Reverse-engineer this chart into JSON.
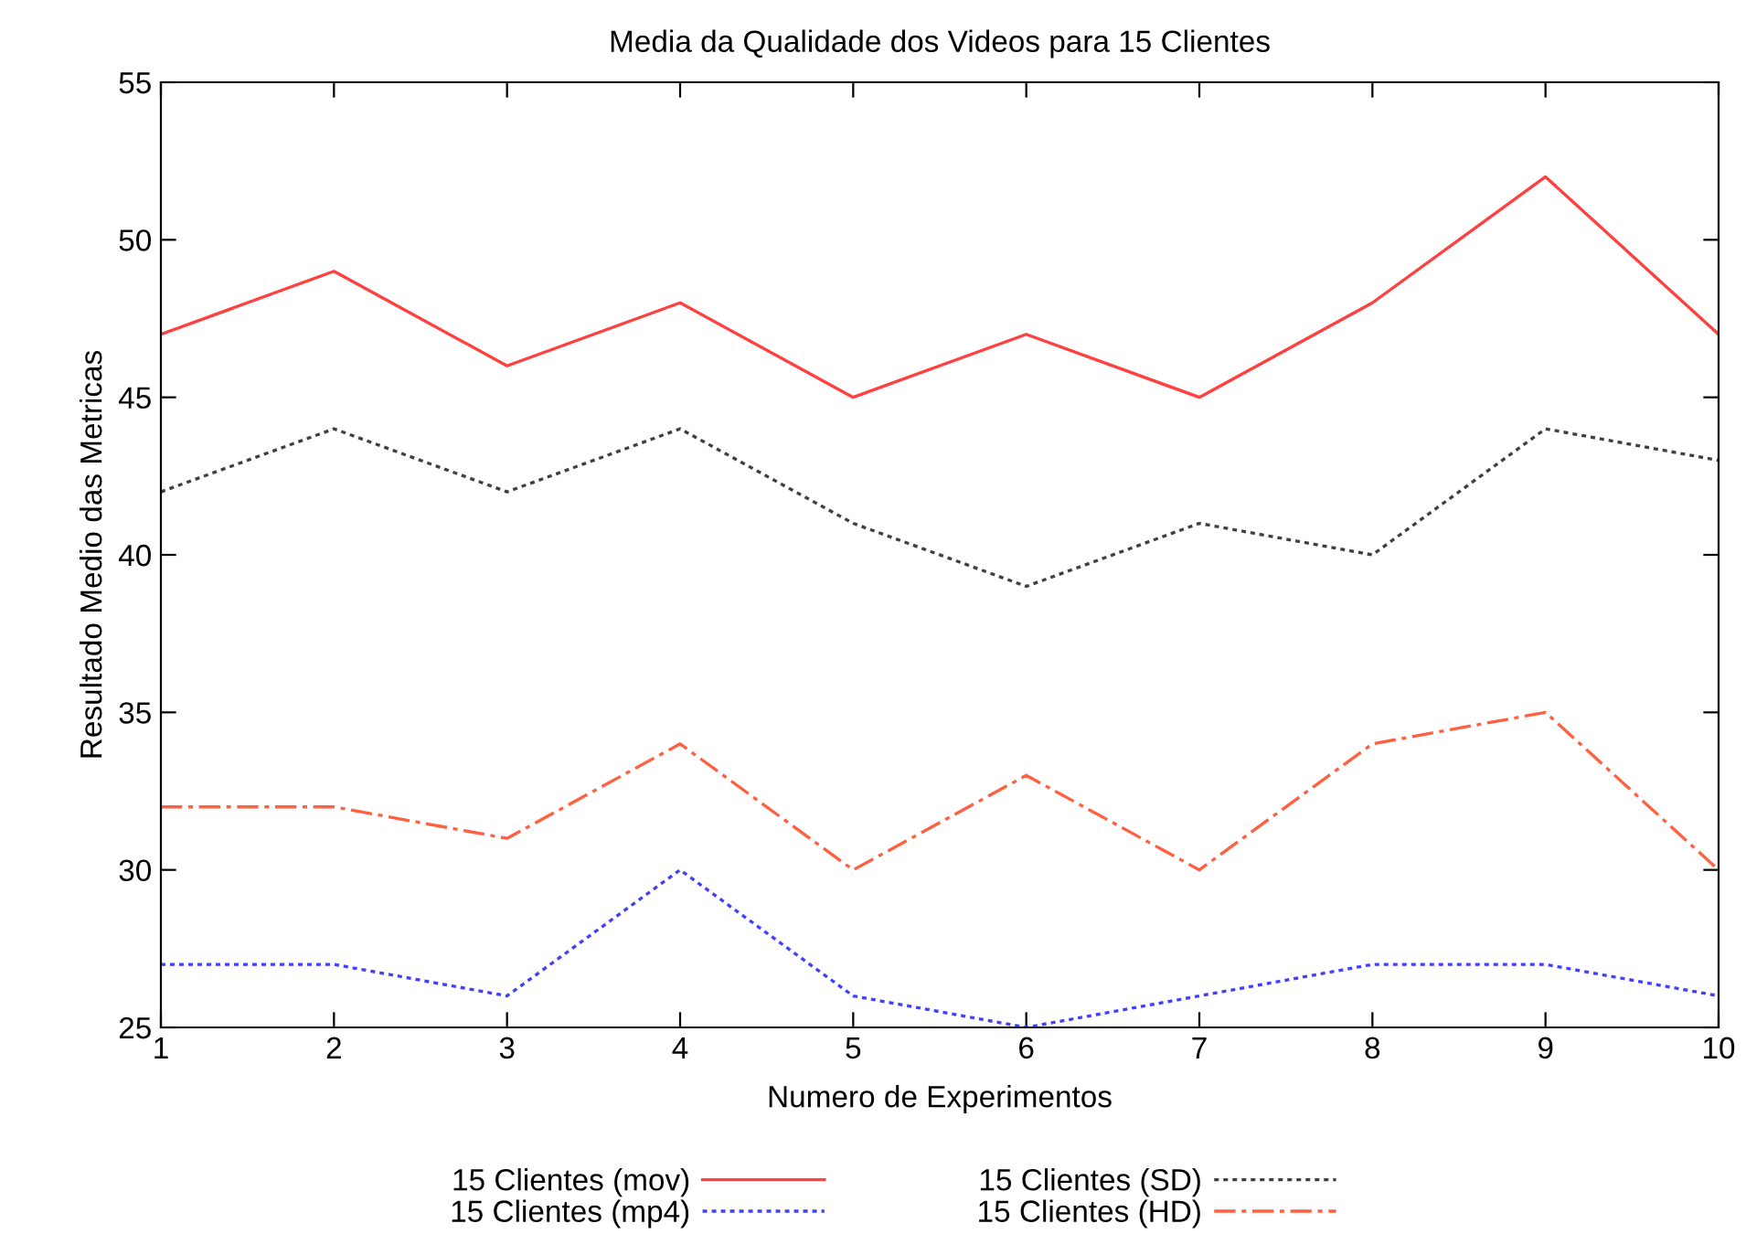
{
  "chart_data": {
    "type": "line",
    "title": "Media da Qualidade dos Videos para 15 Clientes",
    "xlabel": "Numero de Experimentos",
    "ylabel": "Resultado Medio das Metricas",
    "x": [
      1,
      2,
      3,
      4,
      5,
      6,
      7,
      8,
      9,
      10
    ],
    "series": [
      {
        "name": "15 Clientes (mov)",
        "color": "#ff4040",
        "line_style": "solid",
        "values": [
          47,
          49,
          46,
          48,
          45,
          47,
          45,
          48,
          52,
          47
        ]
      },
      {
        "name": "15 Clientes (mp4)",
        "color": "#4040ff",
        "line_style": "dotted",
        "values": [
          27,
          27,
          26,
          30,
          26,
          25,
          26,
          27,
          27,
          26
        ]
      },
      {
        "name": "15 Clientes (SD)",
        "color": "#404040",
        "line_style": "dotted",
        "values": [
          42,
          44,
          42,
          44,
          41,
          39,
          41,
          40,
          44,
          43
        ]
      },
      {
        "name": "15 Clientes (HD)",
        "color": "#ff6040",
        "line_style": "dashed",
        "values": [
          32,
          32,
          31,
          34,
          30,
          33,
          30,
          34,
          35,
          30
        ]
      }
    ],
    "xlim": [
      1,
      10
    ],
    "xticks": [
      1,
      2,
      3,
      4,
      5,
      6,
      7,
      8,
      9,
      10
    ],
    "ylim": [
      25,
      55
    ],
    "yticks": [
      25,
      30,
      35,
      40,
      45,
      50,
      55
    ],
    "grid": false,
    "legend": "bottom",
    "marker": "none"
  }
}
